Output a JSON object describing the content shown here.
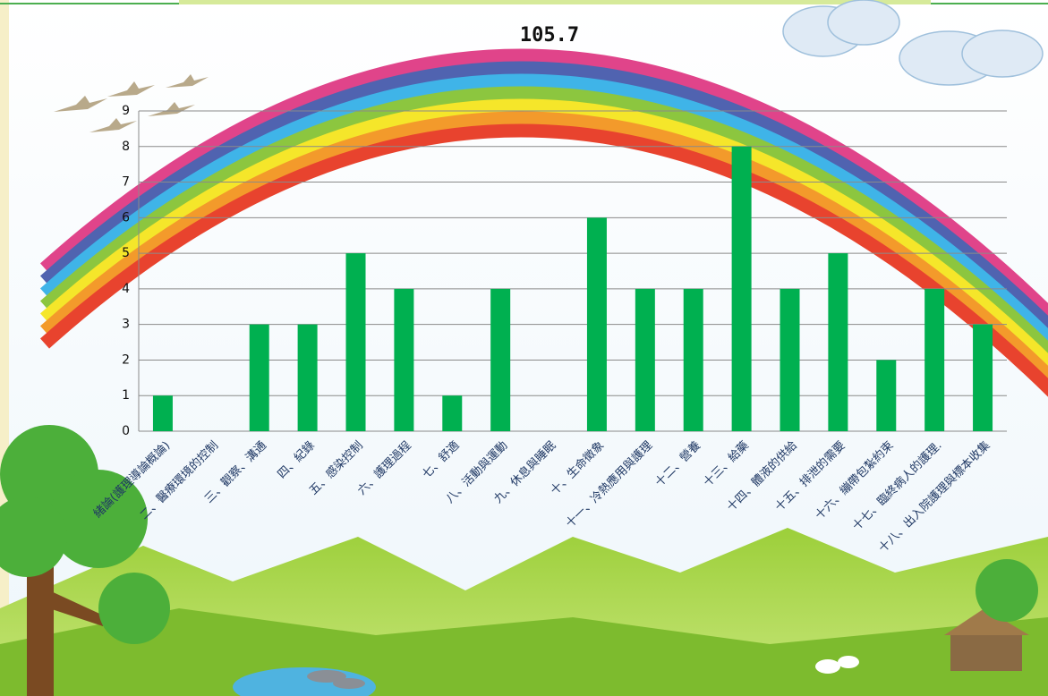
{
  "chart_data": {
    "type": "bar",
    "title": "105.7",
    "categories": [
      "緒論(護理導論概論)",
      "二、醫療環境的控制",
      "三、觀察、溝通",
      "四、紀錄",
      "五、感染控制",
      "六、護理過程",
      "七、舒適",
      "八、活動與運動",
      "九、休息與睡眠",
      "十、生命徵象",
      "十一、冷熱應用與護理",
      "十二、營養",
      "十三、給藥",
      "十四、體液的供給",
      "十五、排泄的需要",
      "十六、繃帶包紮約束",
      "十七、臨終病人的護理.",
      "十八、出入院護理與標本收集"
    ],
    "values": [
      1,
      0,
      3,
      3,
      5,
      4,
      1,
      4,
      0,
      6,
      4,
      4,
      8,
      4,
      5,
      2,
      4,
      3
    ],
    "color": "#00b050",
    "ylim": [
      0,
      9
    ],
    "yticks": [
      0,
      1,
      2,
      3,
      4,
      5,
      6,
      7,
      8,
      9
    ],
    "grid": true
  }
}
